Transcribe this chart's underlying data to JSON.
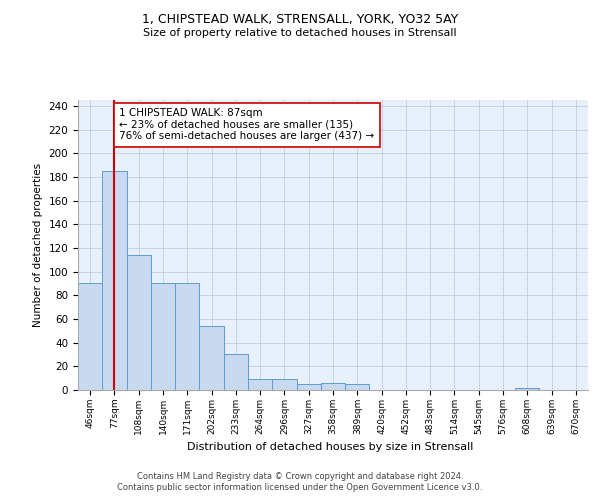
{
  "title1": "1, CHIPSTEAD WALK, STRENSALL, YORK, YO32 5AY",
  "title2": "Size of property relative to detached houses in Strensall",
  "xlabel": "Distribution of detached houses by size in Strensall",
  "ylabel": "Number of detached properties",
  "bar_labels": [
    "46sqm",
    "77sqm",
    "108sqm",
    "140sqm",
    "171sqm",
    "202sqm",
    "233sqm",
    "264sqm",
    "296sqm",
    "327sqm",
    "358sqm",
    "389sqm",
    "420sqm",
    "452sqm",
    "483sqm",
    "514sqm",
    "545sqm",
    "576sqm",
    "608sqm",
    "639sqm",
    "670sqm"
  ],
  "bar_values": [
    90,
    185,
    114,
    90,
    90,
    54,
    30,
    9,
    9,
    5,
    6,
    5,
    0,
    0,
    0,
    0,
    0,
    0,
    2,
    0,
    0
  ],
  "bar_color": "#c9d9f0",
  "bar_edge_color": "#5b9bd5",
  "vline_x_idx": 1,
  "vline_color": "#cc0000",
  "annotation_text": "1 CHIPSTEAD WALK: 87sqm\n← 23% of detached houses are smaller (135)\n76% of semi-detached houses are larger (437) →",
  "annotation_box_color": "#ffffff",
  "annotation_box_edge": "#cc0000",
  "ylim": [
    0,
    245
  ],
  "yticks": [
    0,
    20,
    40,
    60,
    80,
    100,
    120,
    140,
    160,
    180,
    200,
    220,
    240
  ],
  "bg_color": "#e8f0fb",
  "footer1": "Contains HM Land Registry data © Crown copyright and database right 2024.",
  "footer2": "Contains public sector information licensed under the Open Government Licence v3.0."
}
